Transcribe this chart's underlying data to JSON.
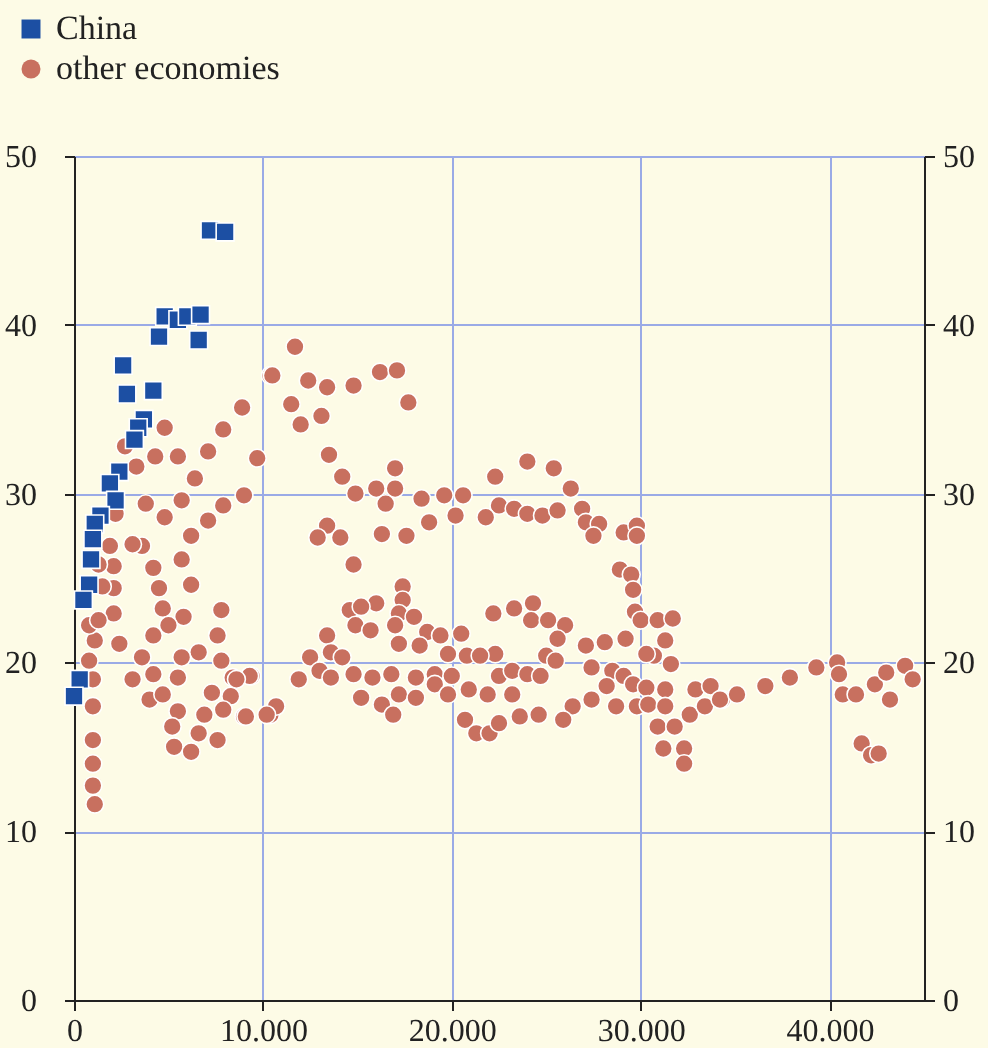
{
  "chart_data": {
    "type": "scatter",
    "xlim": [
      0,
      45000
    ],
    "xticks": [
      0,
      {
        "value": 10000,
        "label": "10.000"
      },
      {
        "value": 20000,
        "label": "20.000"
      },
      {
        "value": 30000,
        "label": "30.000"
      },
      {
        "value": 40000,
        "label": "40.000"
      }
    ],
    "ylim": [
      0,
      50
    ],
    "yticks": [
      0,
      10,
      20,
      30,
      40,
      50
    ],
    "y2lim": [
      0,
      50
    ],
    "y2ticks": [
      0,
      10,
      20,
      30,
      40,
      50
    ],
    "grid": true,
    "legend": "top left",
    "series": [
      {
        "name": "China",
        "color": "#1c4fa3",
        "marker": "square",
        "x": [
          7200,
          8000,
          4800,
          5500,
          6000,
          6700,
          4500,
          6600,
          2600,
          2800,
          4200,
          3700,
          3400,
          3200,
          2400,
          1900,
          2200,
          1400,
          1100,
          1000,
          900,
          800,
          500,
          300,
          0
        ],
        "values": [
          45.6,
          45.5,
          40.5,
          40.3,
          40.5,
          40.6,
          39.3,
          39.1,
          37.6,
          35.9,
          36.1,
          34.4,
          33.9,
          33.2,
          31.3,
          30.6,
          29.6,
          28.7,
          28.2,
          27.3,
          26.1,
          24.6,
          23.7,
          19.0,
          18.0
        ]
      },
      {
        "name": "other economies",
        "color": "#c8705f",
        "marker": "circle",
        "x": [
          10400,
          8900,
          7900,
          4800,
          9700,
          7100,
          5500,
          4300,
          3300,
          2700,
          6400,
          9000,
          7900,
          7100,
          5700,
          4800,
          3800,
          2200,
          3600,
          3100,
          6200,
          5700,
          1900,
          4200,
          2100,
          6200,
          4500,
          2100,
          7800,
          5800,
          4700,
          2100,
          5000,
          4200,
          7600,
          2400,
          1100,
          6600,
          5700,
          3600,
          7800,
          3100,
          4200,
          5500,
          8400,
          9400,
          7300,
          4000,
          4700,
          8300,
          5500,
          6900,
          7900,
          9000,
          5200,
          6600,
          5300,
          6200,
          7600,
          10400,
          800,
          800,
          1000,
          1000,
          1000,
          1000,
          1000,
          1100,
          1300,
          1500,
          1300,
          11700,
          10500,
          12400,
          13400,
          14800,
          16200,
          17100,
          17700,
          11500,
          12000,
          13100,
          13500,
          14200,
          14900,
          16000,
          17000,
          17000,
          16500,
          18400,
          19600,
          20600,
          20200,
          18800,
          13400,
          12900,
          14100,
          16300,
          17600,
          14800,
          17400,
          17400,
          16000,
          14600,
          15200,
          17200,
          18000,
          14900,
          15700,
          17000,
          17200,
          18700,
          18300,
          19400,
          20500,
          19800,
          20800,
          13400,
          13600,
          14200,
          12500,
          13000,
          11900,
          13600,
          14800,
          15800,
          16800,
          18100,
          19100,
          20000,
          9300,
          8600,
          10700,
          10200,
          15200,
          16300,
          17200,
          18100,
          19100,
          19800,
          20900,
          16900,
          20700,
          21300,
          22000,
          9100,
          22300,
          24000,
          25400,
          26300,
          22500,
          21800,
          23300,
          24000,
          24800,
          25600,
          26900,
          27100,
          27800,
          27500,
          29100,
          29800,
          29800,
          28900,
          29500,
          29600,
          29700,
          30000,
          30900,
          31700,
          31300,
          30700,
          31600,
          24300,
          23300,
          22200,
          24200,
          25100,
          26000,
          25600,
          27100,
          28100,
          29200,
          22300,
          21500,
          25000,
          25500,
          27400,
          28500,
          29100,
          30300,
          22500,
          23200,
          24000,
          24700,
          29600,
          30300,
          31300,
          21900,
          23200,
          28200,
          27400,
          28700,
          26400,
          24600,
          23600,
          22500,
          25900,
          29800,
          30400,
          31300,
          32600,
          33400,
          32900,
          34300,
          30900,
          31800,
          31200,
          32300,
          32300,
          33700,
          34200,
          35100,
          36600,
          37900,
          39300,
          40400,
          40500,
          40700,
          41400,
          42400,
          43000,
          44000,
          44400,
          43200,
          41700,
          42200,
          42600
        ],
        "values": [
          37.0,
          35.1,
          33.8,
          33.9,
          32.1,
          32.5,
          32.2,
          32.2,
          31.6,
          32.8,
          30.9,
          29.9,
          29.3,
          28.4,
          29.6,
          28.6,
          29.4,
          28.8,
          26.9,
          27.0,
          27.5,
          26.1,
          26.9,
          25.6,
          25.7,
          24.6,
          24.4,
          24.4,
          23.1,
          22.7,
          23.2,
          22.9,
          22.2,
          21.6,
          21.6,
          21.1,
          21.3,
          20.6,
          20.3,
          20.3,
          20.1,
          19.0,
          19.3,
          19.1,
          19.1,
          19.2,
          18.2,
          17.8,
          18.1,
          18.0,
          17.1,
          16.9,
          17.2,
          16.8,
          16.2,
          15.8,
          15.0,
          14.7,
          15.4,
          16.9,
          22.2,
          20.1,
          19.0,
          17.4,
          15.4,
          14.0,
          12.7,
          11.6,
          22.5,
          24.5,
          25.8,
          38.7,
          37.0,
          36.7,
          36.3,
          36.4,
          37.2,
          37.3,
          35.4,
          35.3,
          34.1,
          34.6,
          32.3,
          31.0,
          30.0,
          30.3,
          31.5,
          30.3,
          29.4,
          29.7,
          29.9,
          29.9,
          28.7,
          28.3,
          28.1,
          27.4,
          27.4,
          27.6,
          27.5,
          25.8,
          24.5,
          23.7,
          23.5,
          23.1,
          23.3,
          22.9,
          22.7,
          22.2,
          21.9,
          22.2,
          21.1,
          21.8,
          21.0,
          21.6,
          21.7,
          20.5,
          20.4,
          21.6,
          20.6,
          20.3,
          20.3,
          19.5,
          19.0,
          19.1,
          19.3,
          19.1,
          19.3,
          19.1,
          19.3,
          19.2,
          19.2,
          19.0,
          17.4,
          16.9,
          17.9,
          17.5,
          18.1,
          17.9,
          18.7,
          18.1,
          18.4,
          16.9,
          16.6,
          15.8,
          15.8,
          16.8,
          31.0,
          31.9,
          31.5,
          30.3,
          29.3,
          28.6,
          29.1,
          28.8,
          28.7,
          29.0,
          29.1,
          28.3,
          28.2,
          27.5,
          27.7,
          28.1,
          27.5,
          25.5,
          25.2,
          24.3,
          23.0,
          22.5,
          22.5,
          22.6,
          21.3,
          20.4,
          19.9,
          23.5,
          23.2,
          22.9,
          22.5,
          22.5,
          22.2,
          21.4,
          21.0,
          21.2,
          21.4,
          20.5,
          20.4,
          20.4,
          20.1,
          19.7,
          19.5,
          19.2,
          20.5,
          19.2,
          19.5,
          19.3,
          19.2,
          18.7,
          18.5,
          18.4,
          18.1,
          18.1,
          18.6,
          17.8,
          17.4,
          17.4,
          16.9,
          16.8,
          16.4,
          16.6,
          17.4,
          17.5,
          17.4,
          16.9,
          17.4,
          18.4,
          17.8,
          16.2,
          16.2,
          14.9,
          14.9,
          14.0,
          18.6,
          17.8,
          18.1,
          18.6,
          19.1,
          19.7,
          20.0,
          19.3,
          18.1,
          18.1,
          18.7,
          19.4,
          19.8,
          19.0,
          17.8,
          15.2,
          14.5,
          14.6
        ]
      }
    ]
  }
}
